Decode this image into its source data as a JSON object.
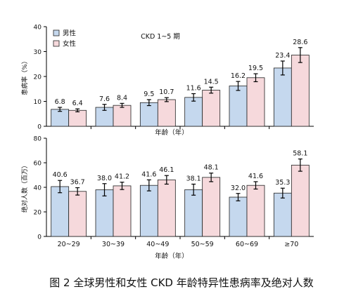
{
  "caption": "图 2 全球男性和女性 CKD 年龄特异性患病率及绝对人数",
  "colors": {
    "male": "#c5d8ee",
    "female": "#f6d9dc",
    "stroke": "#222222",
    "axis": "#000000"
  },
  "chart_data": [
    {
      "type": "bar",
      "title": "CKD 1~5 期",
      "ylabel": "患病率（%）",
      "xlabel": "年龄（年）",
      "ylim": [
        0,
        40
      ],
      "yticks": [
        0,
        10,
        20,
        30,
        40
      ],
      "categories": [
        "20~29",
        "30~39",
        "40~49",
        "50~59",
        "60~69",
        "≥70"
      ],
      "legend": {
        "placement": "top-left",
        "entries": [
          "男性",
          "女性"
        ]
      },
      "series": [
        {
          "name": "男性",
          "values": [
            6.8,
            7.6,
            9.5,
            11.6,
            16.2,
            23.4
          ],
          "labels": [
            "6.8",
            "7.6",
            "9.5",
            "11.6",
            "16.2",
            "23.4"
          ],
          "errors": [
            0.8,
            1.2,
            1.2,
            1.5,
            1.8,
            2.8
          ]
        },
        {
          "name": "女性",
          "values": [
            6.4,
            8.4,
            10.7,
            14.5,
            19.5,
            28.6
          ],
          "labels": [
            "6.4",
            "8.4",
            "10.7",
            "14.5",
            "19.5",
            "28.6"
          ],
          "errors": [
            0.6,
            0.8,
            0.8,
            1.2,
            1.6,
            3.0
          ]
        }
      ]
    },
    {
      "type": "bar",
      "ylabel": "绝对人数（百万）",
      "xlabel": "年龄（年）",
      "ylim": [
        0,
        80
      ],
      "yticks": [
        0,
        20,
        40,
        60,
        80
      ],
      "categories": [
        "20~29",
        "30~39",
        "40~49",
        "50~59",
        "60~69",
        "≥70"
      ],
      "series": [
        {
          "name": "男性",
          "values": [
            40.6,
            38.0,
            41.6,
            38.1,
            32.0,
            35.3
          ],
          "labels": [
            "40.6",
            "38.0",
            "41.6",
            "38.1",
            "32.0",
            "35.3"
          ],
          "errors": [
            5.0,
            5.0,
            4.5,
            4.5,
            3.0,
            4.0
          ]
        },
        {
          "name": "女性",
          "values": [
            36.7,
            41.2,
            46.1,
            48.1,
            41.6,
            58.1
          ],
          "labels": [
            "36.7",
            "41.2",
            "46.1",
            "48.1",
            "41.6",
            "58.1"
          ],
          "errors": [
            3.0,
            3.0,
            3.5,
            3.5,
            3.0,
            5.0
          ]
        }
      ]
    }
  ]
}
